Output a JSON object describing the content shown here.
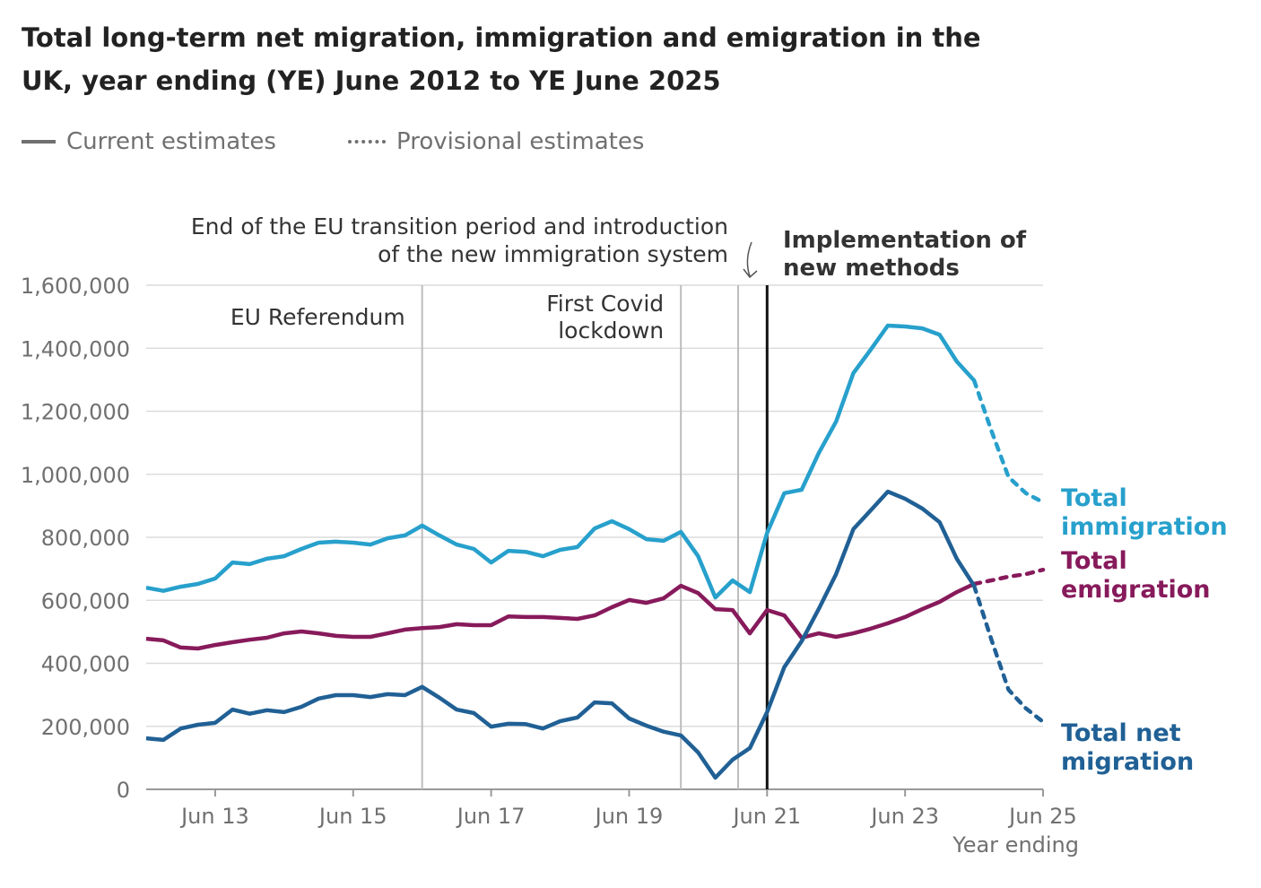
{
  "title": "Total long-term net migration, immigration and emigration in the UK, year ending (YE) June 2012 to YE June 2025",
  "legend": {
    "current": "Current estimates",
    "provisional": "Provisional estimates"
  },
  "chart_data": {
    "type": "line",
    "title": "Total long-term net migration, immigration and emigration in the UK, year ending (YE) June 2012 to YE June 2025",
    "xlabel": "Year ending",
    "ylabel": "",
    "xlim": [
      2012.5,
      2025.5
    ],
    "ylim": [
      0,
      1600000
    ],
    "grid": true,
    "x_tick_labels": [
      "Jun 13",
      "Jun 15",
      "Jun 17",
      "Jun 19",
      "Jun 21",
      "Jun 23",
      "Jun 25"
    ],
    "x_tick_values": [
      2013.5,
      2015.5,
      2017.5,
      2019.5,
      2021.5,
      2023.5,
      2025.5
    ],
    "y_tick_labels": [
      "0",
      "200,000",
      "400,000",
      "600,000",
      "800,000",
      "1,000,000",
      "1,200,000",
      "1,400,000",
      "1,600,000"
    ],
    "y_tick_values": [
      0,
      200000,
      400000,
      600000,
      800000,
      1000000,
      1200000,
      1400000,
      1600000
    ],
    "x_start": 2012.5,
    "x_step": 0.25,
    "provisional_from_index": 48,
    "series": [
      {
        "name": "Total immigration",
        "color": "#27a0cc",
        "values": [
          640,
          630,
          643,
          652,
          669,
          720,
          715,
          732,
          740,
          763,
          783,
          786,
          783,
          777,
          797,
          806,
          837,
          806,
          777,
          763,
          720,
          757,
          754,
          740,
          760,
          769,
          828,
          851,
          826,
          794,
          789,
          817,
          740,
          609,
          663,
          626,
          814,
          940,
          951,
          1068,
          1167,
          1321,
          1395,
          1472,
          1469,
          1463,
          1443,
          1358,
          1298,
          1139,
          991,
          940,
          911
        ]
      },
      {
        "name": "Total emigration",
        "color": "#871a5b",
        "values": [
          478,
          473,
          450,
          447,
          458,
          467,
          475,
          481,
          495,
          501,
          495,
          487,
          484,
          484,
          495,
          507,
          512,
          515,
          524,
          521,
          521,
          549,
          547,
          547,
          544,
          541,
          552,
          578,
          601,
          592,
          606,
          646,
          623,
          572,
          569,
          495,
          569,
          552,
          481,
          495,
          484,
          495,
          510,
          527,
          547,
          572,
          595,
          626,
          652,
          663,
          675,
          683,
          697
        ]
      },
      {
        "name": "Total net migration",
        "color": "#206095",
        "values": [
          162,
          157,
          193,
          205,
          211,
          253,
          240,
          251,
          245,
          262,
          288,
          299,
          299,
          293,
          302,
          299,
          325,
          291,
          253,
          242,
          199,
          208,
          207,
          193,
          216,
          228,
          276,
          273,
          225,
          202,
          183,
          171,
          117,
          37,
          94,
          131,
          245,
          388,
          470,
          573,
          683,
          826,
          885,
          945,
          922,
          891,
          848,
          732,
          646,
          476,
          316,
          257,
          214
        ]
      }
    ],
    "value_unit_multiplier": 1000,
    "series_labels": [
      {
        "line1": "Total",
        "line2": "immigration"
      },
      {
        "line1": "Total",
        "line2": "emigration"
      },
      {
        "line1": "Total net",
        "line2": "migration"
      }
    ],
    "annotations": [
      {
        "x": 2016.5,
        "lines": [
          "EU Referendum"
        ],
        "bold": false,
        "color": "#bdbdbd"
      },
      {
        "x": 2020.25,
        "lines": [
          "First Covid",
          "lockdown"
        ],
        "bold": false,
        "color": "#bdbdbd"
      },
      {
        "x": 2021.08,
        "lines": [
          "End of the EU transition period and introduction",
          "of the new immigration system"
        ],
        "bold": false,
        "color": "#bdbdbd"
      },
      {
        "x": 2021.5,
        "lines": [
          "Implementation of",
          "new methods"
        ],
        "bold": true,
        "color": "#111111"
      }
    ]
  }
}
